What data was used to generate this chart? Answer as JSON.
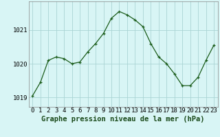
{
  "hours": [
    0,
    1,
    2,
    3,
    4,
    5,
    6,
    7,
    8,
    9,
    10,
    11,
    12,
    13,
    14,
    15,
    16,
    17,
    18,
    19,
    20,
    21,
    22,
    23
  ],
  "pressure": [
    1019.05,
    1019.45,
    1020.1,
    1020.2,
    1020.15,
    1020.0,
    1020.05,
    1020.35,
    1020.6,
    1020.9,
    1021.35,
    1021.55,
    1021.45,
    1021.3,
    1021.1,
    1020.6,
    1020.2,
    1020.0,
    1019.7,
    1019.35,
    1019.35,
    1019.6,
    1020.1,
    1020.55
  ],
  "line_color": "#1a5c1a",
  "marker_color": "#1a5c1a",
  "bg_color": "#d8f5f5",
  "grid_color": "#aad4d4",
  "xlabel": "Graphe pression niveau de la mer (hPa)",
  "yticks": [
    1019,
    1020,
    1021
  ],
  "ylim": [
    1018.72,
    1021.85
  ],
  "xlim": [
    -0.5,
    23.5
  ],
  "xlabel_fontsize": 7.5,
  "tick_fontsize": 6.5,
  "outer_bg": "#d8f5f5"
}
